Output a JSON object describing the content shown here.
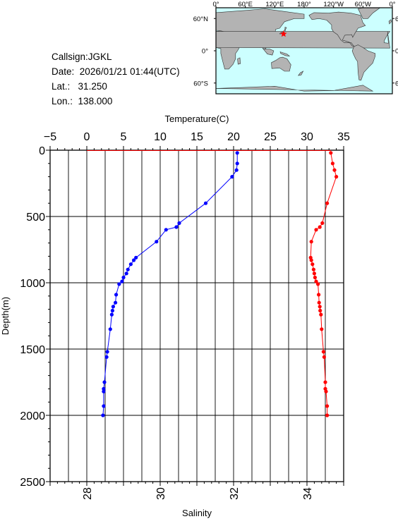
{
  "station": {
    "callsign_label": "Callsign:",
    "callsign": "JGKL",
    "date_label": "Date:",
    "date": "2026/01/21 01:44(UTC)",
    "lat_label": "Lat.:",
    "lat": "31.250",
    "lon_label": "Lon.:",
    "lon": "138.000"
  },
  "map": {
    "lon_ticks": [
      "0°",
      "60°E",
      "120°E",
      "180°",
      "120°W",
      "60°W",
      "0°"
    ],
    "lat_ticks": [
      "60°N",
      "0°",
      "60°S"
    ],
    "ocean_color": "#ccffff",
    "land_color": "#b3b3b3",
    "marker": {
      "lat": 31.25,
      "lon": 138.0,
      "color": "#ff0000",
      "symbol": "star"
    }
  },
  "chart_data": {
    "type": "line",
    "title": "",
    "ylabel": "Depth(m)",
    "ylim": [
      0,
      2500
    ],
    "y_ticks": [
      0,
      500,
      1000,
      1500,
      2000,
      2500
    ],
    "y_inverted": true,
    "top_axis": {
      "label": "Temperature(C)",
      "range": [
        -5,
        35
      ],
      "ticks": [
        -5,
        0,
        5,
        10,
        15,
        20,
        25,
        30,
        35
      ]
    },
    "bottom_axis": {
      "label": "Salinity",
      "range": [
        27,
        35
      ],
      "ticks": [
        28,
        30,
        32,
        34
      ]
    },
    "grid": true,
    "series": [
      {
        "axis": "top",
        "color": "#0000ff",
        "points": [
          [
            20.5,
            20
          ],
          [
            20.5,
            100
          ],
          [
            20.4,
            150
          ],
          [
            19.8,
            200
          ],
          [
            16.2,
            400
          ],
          [
            12.6,
            550
          ],
          [
            12.2,
            580
          ],
          [
            10.8,
            600
          ],
          [
            9.5,
            690
          ],
          [
            6.7,
            810
          ],
          [
            6.4,
            830
          ],
          [
            6.0,
            860
          ],
          [
            5.6,
            900
          ],
          [
            5.4,
            930
          ],
          [
            5.0,
            960
          ],
          [
            4.8,
            990
          ],
          [
            4.4,
            1010
          ],
          [
            4.0,
            1090
          ],
          [
            3.9,
            1150
          ],
          [
            3.6,
            1180
          ],
          [
            3.5,
            1210
          ],
          [
            3.4,
            1240
          ],
          [
            3.2,
            1350
          ],
          [
            2.8,
            1520
          ],
          [
            2.7,
            1560
          ],
          [
            2.4,
            1750
          ],
          [
            2.3,
            1800
          ],
          [
            2.3,
            1820
          ],
          [
            2.3,
            1930
          ],
          [
            2.2,
            2000
          ]
        ]
      },
      {
        "axis": "bottom",
        "color": "#ff0000",
        "points": [
          [
            34.65,
            20
          ],
          [
            34.7,
            100
          ],
          [
            34.75,
            150
          ],
          [
            34.8,
            200
          ],
          [
            34.55,
            400
          ],
          [
            34.42,
            550
          ],
          [
            34.35,
            580
          ],
          [
            34.25,
            600
          ],
          [
            34.12,
            690
          ],
          [
            34.1,
            810
          ],
          [
            34.12,
            830
          ],
          [
            34.15,
            860
          ],
          [
            34.18,
            900
          ],
          [
            34.2,
            930
          ],
          [
            34.22,
            960
          ],
          [
            34.25,
            990
          ],
          [
            34.3,
            1010
          ],
          [
            34.32,
            1090
          ],
          [
            34.33,
            1150
          ],
          [
            34.35,
            1180
          ],
          [
            34.36,
            1210
          ],
          [
            34.38,
            1240
          ],
          [
            34.4,
            1350
          ],
          [
            34.45,
            1520
          ],
          [
            34.47,
            1560
          ],
          [
            34.5,
            1750
          ],
          [
            34.5,
            1800
          ],
          [
            34.52,
            1820
          ],
          [
            34.55,
            1930
          ],
          [
            34.55,
            2000
          ]
        ]
      }
    ]
  }
}
